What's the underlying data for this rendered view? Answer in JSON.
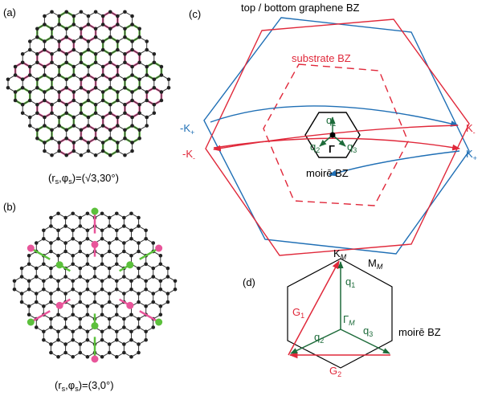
{
  "panel_a": {
    "label": "(a)",
    "caption": [
      "(r",
      "s",
      ",φ",
      "s",
      ")=(√3,30°)"
    ]
  },
  "panel_b": {
    "label": "(b)",
    "caption": [
      "(r",
      "s",
      ",φ",
      "s",
      ")=(3,0°)"
    ]
  },
  "panel_c": {
    "label": "(c)",
    "title": "top / bottom graphene BZ",
    "substrate": "substrate BZ",
    "points": {
      "minus_k_plus": {
        "main": "-K",
        "sub": "+"
      },
      "minus_k_minus": {
        "main": "-K",
        "sub": "-"
      },
      "k_minus": {
        "main": "K",
        "sub": "-"
      },
      "k_plus": {
        "main": "K",
        "sub": "+"
      }
    },
    "q1": {
      "main": "q",
      "sub": "1"
    },
    "q2": {
      "main": "q",
      "sub": "2"
    },
    "q3": {
      "main": "q",
      "sub": "3"
    },
    "gamma": "Γ",
    "moire": "moirē BZ"
  },
  "panel_d": {
    "label": "(d)",
    "k_m": {
      "main": "K",
      "sub": "M"
    },
    "m_m": {
      "main": "M",
      "sub": "M"
    },
    "gamma_m": {
      "main": "Γ",
      "sub": "M"
    },
    "g1": {
      "main": "G",
      "sub": "1"
    },
    "g2": {
      "main": "G",
      "sub": "2"
    },
    "q1": {
      "main": "q",
      "sub": "1"
    },
    "q2": {
      "main": "q",
      "sub": "2"
    },
    "q3": {
      "main": "q",
      "sub": "3"
    },
    "moire": "moirē BZ"
  }
}
